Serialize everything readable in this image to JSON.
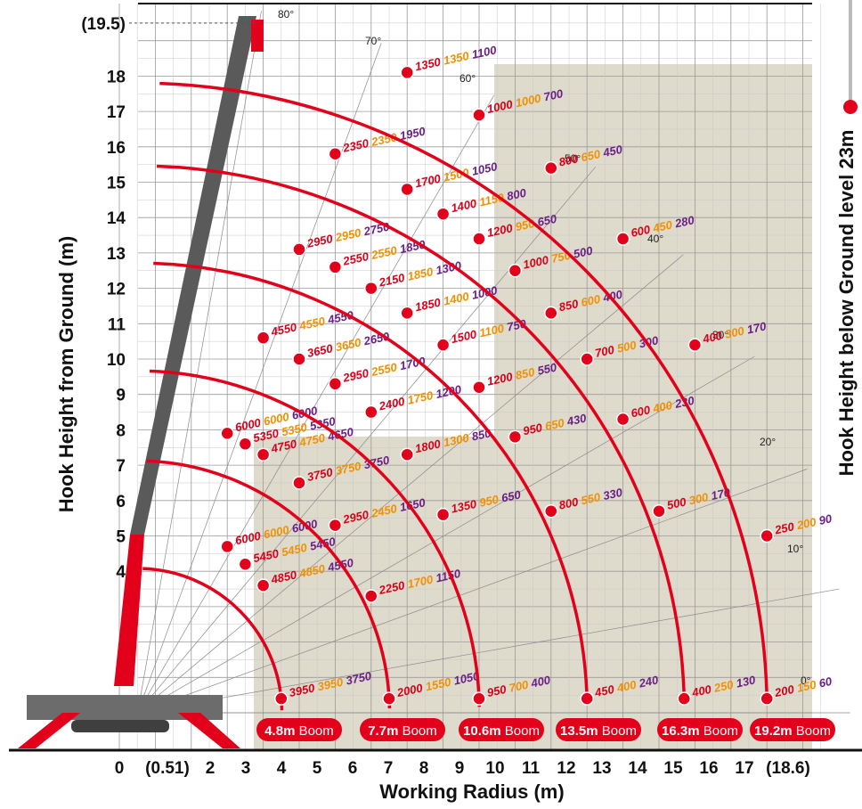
{
  "colors": {
    "arc": "#e3001b",
    "grid": "#9a9a9a",
    "building": "#dedbcc",
    "crane_body": "#5a5a5a",
    "crane_red": "#e3001b",
    "label_red": "#d8001a",
    "label_orange": "#f29100",
    "label_purple": "#6b1f86"
  },
  "chart_data": {
    "type": "line",
    "title": "",
    "xlabel": "Working Radius (m)",
    "ylabel": "Hook Height from Ground (m)",
    "y2label": "Hook Height below Ground level  23m",
    "x_ticks": [
      "0",
      "(0.51)",
      "2",
      "3",
      "4",
      "5",
      "6",
      "7",
      "8",
      "9",
      "10",
      "11",
      "12",
      "13",
      "14",
      "15",
      "16",
      "17",
      "(18.6)"
    ],
    "y_ticks": [
      "(19.5)",
      "18",
      "17",
      "16",
      "15",
      "14",
      "13",
      "12",
      "11",
      "10",
      "9",
      "8",
      "7",
      "6",
      "5",
      "4"
    ],
    "angle_labels": [
      "80°",
      "70°",
      "60°",
      "50°",
      "40°",
      "30°",
      "20°",
      "10°",
      "0°"
    ],
    "booms": [
      {
        "name": "4.8m Boom",
        "length_value": "4.8m",
        "length_unit": "Boom",
        "points": [
          {
            "x": 3.0,
            "y": 7.9,
            "loads": [
              "6000",
              "6000",
              "6000"
            ]
          },
          {
            "x": 3.5,
            "y": 7.6,
            "loads": [
              "5350",
              "5350",
              "5350"
            ]
          },
          {
            "x": 4.0,
            "y": 7.3,
            "loads": [
              "4750",
              "4750",
              "4650"
            ]
          },
          {
            "x": 3.0,
            "y": 4.7,
            "loads": [
              "6000",
              "6000",
              "6000"
            ]
          },
          {
            "x": 3.5,
            "y": 4.2,
            "loads": [
              "5450",
              "5450",
              "5450"
            ]
          },
          {
            "x": 4.0,
            "y": 3.6,
            "loads": [
              "4850",
              "4850",
              "4550"
            ]
          },
          {
            "x": 4.5,
            "y": 0.4,
            "loads": [
              "3950",
              "3950",
              "3750"
            ]
          }
        ]
      },
      {
        "name": "7.7m Boom",
        "length_value": "7.7m",
        "length_unit": "Boom",
        "points": [
          {
            "x": 4.0,
            "y": 10.6,
            "loads": [
              "4550",
              "4550",
              "4550"
            ]
          },
          {
            "x": 5.0,
            "y": 6.5,
            "loads": [
              "3750",
              "3750",
              "3750"
            ]
          },
          {
            "x": 6.0,
            "y": 5.3,
            "loads": [
              "2950",
              "2450",
              "1650"
            ]
          },
          {
            "x": 7.0,
            "y": 3.3,
            "loads": [
              "2250",
              "1700",
              "1150"
            ]
          },
          {
            "x": 7.5,
            "y": 0.4,
            "loads": [
              "2000",
              "1550",
              "1050"
            ]
          }
        ]
      },
      {
        "name": "10.6m Boom",
        "length_value": "10.6m",
        "length_unit": "Boom",
        "points": [
          {
            "x": 5.0,
            "y": 13.1,
            "loads": [
              "2950",
              "2950",
              "2750"
            ]
          },
          {
            "x": 5.0,
            "y": 10.0,
            "loads": [
              "3650",
              "3650",
              "2650"
            ]
          },
          {
            "x": 6.0,
            "y": 9.3,
            "loads": [
              "2950",
              "2550",
              "1700"
            ]
          },
          {
            "x": 7.0,
            "y": 8.5,
            "loads": [
              "2400",
              "1750",
              "1200"
            ]
          },
          {
            "x": 8.0,
            "y": 7.3,
            "loads": [
              "1800",
              "1300",
              "850"
            ]
          },
          {
            "x": 9.0,
            "y": 5.6,
            "loads": [
              "1350",
              "950",
              "650"
            ]
          },
          {
            "x": 10.0,
            "y": 0.4,
            "loads": [
              "950",
              "700",
              "400"
            ]
          }
        ]
      },
      {
        "name": "13.5m Boom",
        "length_value": "13.5m",
        "length_unit": "Boom",
        "points": [
          {
            "x": 6.0,
            "y": 15.8,
            "loads": [
              "2350",
              "2350",
              "1950"
            ]
          },
          {
            "x": 6.0,
            "y": 12.6,
            "loads": [
              "2550",
              "2550",
              "1850"
            ]
          },
          {
            "x": 7.0,
            "y": 12.0,
            "loads": [
              "2150",
              "1850",
              "1300"
            ]
          },
          {
            "x": 8.0,
            "y": 11.3,
            "loads": [
              "1850",
              "1400",
              "1000"
            ]
          },
          {
            "x": 9.0,
            "y": 10.4,
            "loads": [
              "1500",
              "1100",
              "750"
            ]
          },
          {
            "x": 10.0,
            "y": 9.2,
            "loads": [
              "1200",
              "850",
              "550"
            ]
          },
          {
            "x": 11.0,
            "y": 7.8,
            "loads": [
              "950",
              "650",
              "430"
            ]
          },
          {
            "x": 12.0,
            "y": 5.7,
            "loads": [
              "800",
              "550",
              "330"
            ]
          },
          {
            "x": 13.0,
            "y": 0.4,
            "loads": [
              "450",
              "400",
              "240"
            ]
          }
        ]
      },
      {
        "name": "16.3m Boom",
        "length_value": "16.3m",
        "length_unit": "Boom",
        "points": [
          {
            "x": 8.0,
            "y": 14.8,
            "loads": [
              "1700",
              "1500",
              "1050"
            ]
          },
          {
            "x": 9.0,
            "y": 14.1,
            "loads": [
              "1400",
              "1150",
              "800"
            ]
          },
          {
            "x": 10.0,
            "y": 13.4,
            "loads": [
              "1200",
              "950",
              "650"
            ]
          },
          {
            "x": 11.0,
            "y": 12.5,
            "loads": [
              "1000",
              "750",
              "500"
            ]
          },
          {
            "x": 12.0,
            "y": 11.3,
            "loads": [
              "850",
              "600",
              "400"
            ]
          },
          {
            "x": 13.0,
            "y": 10.0,
            "loads": [
              "700",
              "500",
              "300"
            ]
          },
          {
            "x": 14.0,
            "y": 8.3,
            "loads": [
              "600",
              "400",
              "230"
            ]
          },
          {
            "x": 15.0,
            "y": 5.7,
            "loads": [
              "500",
              "300",
              "170"
            ]
          },
          {
            "x": 15.7,
            "y": 0.4,
            "loads": [
              "400",
              "250",
              "130"
            ]
          }
        ]
      },
      {
        "name": "19.2m Boom",
        "length_value": "19.2m",
        "length_unit": "Boom",
        "points": [
          {
            "x": 8.0,
            "y": 18.1,
            "loads": [
              "1350",
              "1350",
              "1100"
            ]
          },
          {
            "x": 10.0,
            "y": 16.9,
            "loads": [
              "1000",
              "1000",
              "700"
            ]
          },
          {
            "x": 12.0,
            "y": 15.4,
            "loads": [
              "800",
              "650",
              "450"
            ]
          },
          {
            "x": 14.0,
            "y": 13.4,
            "loads": [
              "600",
              "450",
              "280"
            ]
          },
          {
            "x": 16.0,
            "y": 10.4,
            "loads": [
              "400",
              "300",
              "170"
            ]
          },
          {
            "x": 18.0,
            "y": 5.0,
            "loads": [
              "250",
              "200",
              "90"
            ]
          },
          {
            "x": 18.0,
            "y": 0.4,
            "loads": [
              "200",
              "150",
              "60"
            ]
          }
        ]
      }
    ],
    "xlim": [
      0,
      18.6
    ],
    "ylim": [
      0,
      19.5
    ],
    "grid": true,
    "legend": "none"
  }
}
